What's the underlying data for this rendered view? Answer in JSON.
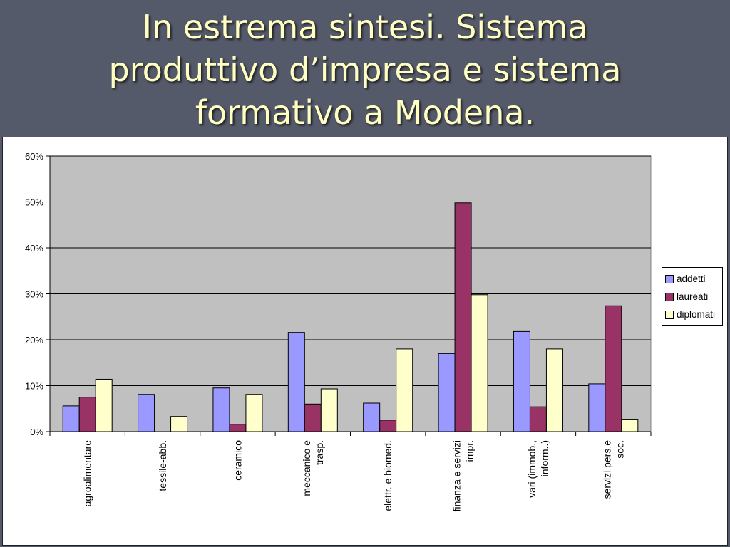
{
  "slide": {
    "title": "In estrema sintesi. Sistema\nproduttivo d’impresa e sistema\nformativo a Modena."
  },
  "colors": {
    "background": "#555a6b",
    "title_text": "#ffffc4",
    "plot_area": "#c0c0c0",
    "series": [
      "#9999ff",
      "#993366",
      "#ffffcc"
    ]
  },
  "chart_data": {
    "type": "bar",
    "categories": [
      "agroalimentare",
      "tessile-abb.",
      "ceramico",
      "meccanico e\ntrasp.",
      "elettr. e biomed.",
      "finanza e servizi\nimpr.",
      "vari (immob.,\ninform..)",
      "servizi pers.e\nsoc."
    ],
    "series": [
      {
        "name": "addetti",
        "color": "#9999ff",
        "values": [
          5.6,
          8.1,
          9.5,
          21.6,
          6.2,
          17.0,
          21.8,
          10.4
        ]
      },
      {
        "name": "laureati",
        "color": "#993366",
        "values": [
          7.5,
          0,
          1.6,
          6.0,
          2.5,
          49.8,
          5.4,
          27.4
        ]
      },
      {
        "name": "diplomati",
        "color": "#ffffcc",
        "values": [
          11.4,
          3.3,
          8.1,
          9.3,
          18.0,
          29.8,
          18.0,
          2.7
        ]
      }
    ],
    "yticks": [
      "0%",
      "10%",
      "20%",
      "30%",
      "40%",
      "50%",
      "60%"
    ],
    "ylim": [
      0,
      60
    ],
    "grid": true,
    "legend": "right"
  }
}
